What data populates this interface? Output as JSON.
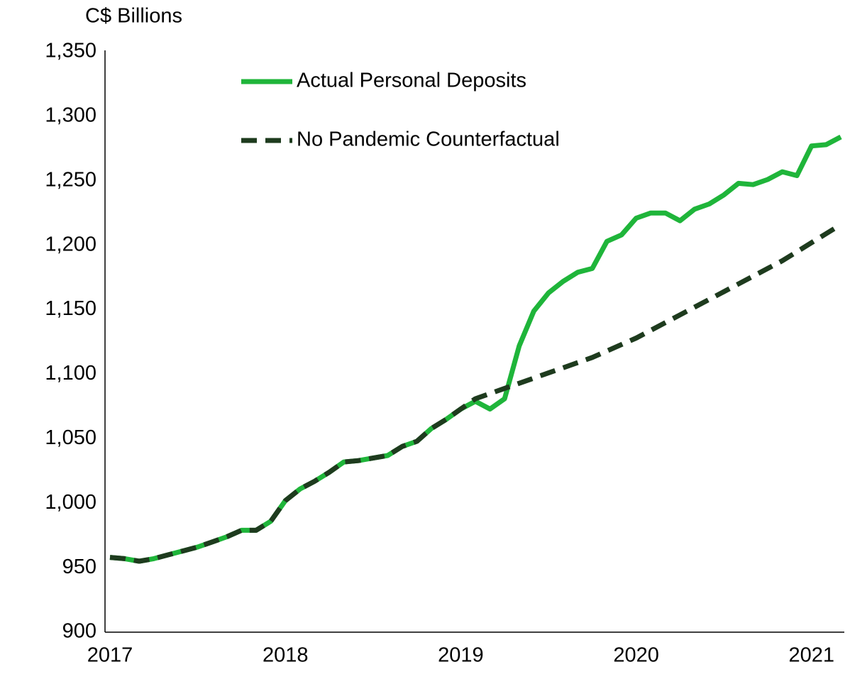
{
  "chart_data": {
    "type": "line",
    "y_label": "C$ Billions",
    "categories": [
      "2017",
      null,
      null,
      null,
      null,
      null,
      null,
      null,
      null,
      null,
      null,
      null,
      "2018",
      null,
      null,
      null,
      null,
      null,
      null,
      null,
      null,
      null,
      null,
      null,
      "2019",
      null,
      null,
      null,
      null,
      null,
      null,
      null,
      null,
      null,
      null,
      null,
      "2020",
      null,
      null,
      null,
      null,
      null,
      null,
      null,
      null,
      null,
      null,
      null,
      "2021",
      null,
      null
    ],
    "series": [
      {
        "name": "Actual Personal Deposits",
        "color": "#1fb53a",
        "dashed": false,
        "values": [
          958,
          957,
          955,
          957,
          960,
          963,
          966,
          970,
          974,
          979,
          979,
          986,
          1002,
          1011,
          1017,
          1024,
          1032,
          1033,
          1035,
          1037,
          1044,
          1048,
          1058,
          1065,
          1073,
          1079,
          1073,
          1081,
          1122,
          1149,
          1163,
          1172,
          1179,
          1182,
          1203,
          1208,
          1221,
          1225,
          1225,
          1219,
          1228,
          1232,
          1239,
          1248,
          1247,
          1251,
          1257,
          1254,
          1277,
          1278,
          1284
        ]
      },
      {
        "name": "No Pandemic Counterfactual",
        "color": "#1e3b1e",
        "dashed": true,
        "values": [
          958,
          957,
          955,
          957,
          960,
          963,
          966,
          970,
          974,
          979,
          979,
          986,
          1002,
          1011,
          1017,
          1024,
          1032,
          1033,
          1035,
          1037,
          1044,
          1048,
          1058,
          1065,
          1073,
          1081,
          1085,
          1089,
          1093,
          1097,
          1101,
          1105,
          1109,
          1113,
          1118,
          1123,
          1128,
          1134,
          1140,
          1146,
          1152,
          1158,
          1164,
          1170,
          1176,
          1182,
          1188,
          1195,
          1202,
          1209,
          1216
        ]
      }
    ],
    "ylim": [
      900,
      1350
    ],
    "yticks": [
      {
        "value": 900,
        "label": "900"
      },
      {
        "value": 950,
        "label": "950"
      },
      {
        "value": 1000,
        "label": "1,000"
      },
      {
        "value": 1050,
        "label": "1,050"
      },
      {
        "value": 1100,
        "label": "1,100"
      },
      {
        "value": 1150,
        "label": "1,150"
      },
      {
        "value": 1200,
        "label": "1,200"
      },
      {
        "value": 1250,
        "label": "1,250"
      },
      {
        "value": 1300,
        "label": "1,300"
      },
      {
        "value": 1350,
        "label": "1,350"
      }
    ],
    "grid": false
  }
}
